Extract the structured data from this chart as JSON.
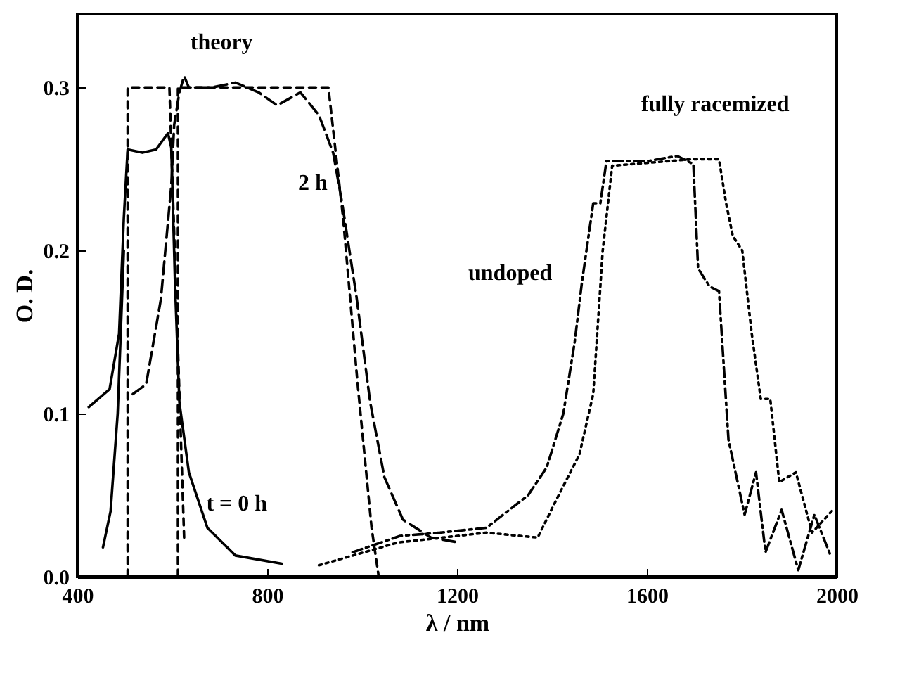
{
  "chart_data": {
    "type": "line",
    "xlabel": "λ / nm",
    "ylabel": "O. D.",
    "xlim": [
      400,
      2000
    ],
    "xticks": [
      400,
      800,
      1200,
      1600,
      2000
    ],
    "ylim": [
      0,
      0.345
    ],
    "yticks": [
      {
        "value": 0,
        "label": "0.0"
      },
      0.1,
      0.2,
      0.3
    ],
    "grid": false,
    "marker": "none",
    "series": [
      {
        "color": "#000000",
        "line_style": "solid",
        "x": [
          424,
          468,
          488,
          498,
          506,
          537,
          566,
          591,
          598,
          606,
          615,
          635,
          674,
          733,
          831
        ],
        "values": [
          0.104,
          0.115,
          0.149,
          0.22,
          0.262,
          0.26,
          0.262,
          0.272,
          0.263,
          0.178,
          0.107,
          0.064,
          0.03,
          0.013,
          0.008
        ]
      },
      {
        "color": "#000000",
        "line_style": "solid",
        "x": [
          454,
          470,
          485,
          498
        ],
        "values": [
          0.018,
          0.04,
          0.1,
          0.2
        ]
      },
      {
        "color": "#000000",
        "line_style": "dashed",
        "x": [
          506,
          506,
          594,
          625
        ],
        "values": [
          0.0,
          0.3,
          0.3,
          0.024
        ]
      },
      {
        "color": "#000000",
        "line_style": "dashed",
        "x": [
          612,
          612,
          929,
          960,
          990,
          1020,
          1035
        ],
        "values": [
          0.0,
          0.3,
          0.3,
          0.22,
          0.12,
          0.03,
          0.0
        ]
      },
      {
        "color": "#000000",
        "line_style": "longdash",
        "x": [
          517,
          545,
          576,
          598,
          604,
          615,
          625,
          635,
          684,
          733,
          782,
          821,
          870,
          909,
          939,
          958,
          988,
          1017,
          1047,
          1086,
          1145,
          1203
        ],
        "values": [
          0.112,
          0.118,
          0.17,
          0.24,
          0.277,
          0.297,
          0.307,
          0.3,
          0.3,
          0.303,
          0.297,
          0.289,
          0.297,
          0.283,
          0.26,
          0.229,
          0.172,
          0.107,
          0.061,
          0.035,
          0.024,
          0.021
        ]
      },
      {
        "color": "#000000",
        "line_style": "dashdot",
        "x": [
          980,
          1080,
          1164,
          1262,
          1350,
          1389,
          1424,
          1448,
          1463,
          1487,
          1502,
          1515,
          1605,
          1664,
          1698,
          1708,
          1732,
          1752,
          1772,
          1806,
          1830,
          1850,
          1884,
          1919,
          1953,
          1987
        ],
        "values": [
          0.015,
          0.025,
          0.027,
          0.03,
          0.05,
          0.067,
          0.1,
          0.144,
          0.18,
          0.229,
          0.229,
          0.255,
          0.255,
          0.258,
          0.253,
          0.189,
          0.178,
          0.175,
          0.084,
          0.038,
          0.064,
          0.015,
          0.041,
          0.004,
          0.038,
          0.013
        ]
      },
      {
        "color": "#000000",
        "line_style": "dotted",
        "x": [
          909,
          1076,
          1262,
          1370,
          1409,
          1458,
          1487,
          1507,
          1527,
          1654,
          1693,
          1752,
          1767,
          1781,
          1801,
          1821,
          1840,
          1860,
          1879,
          1914,
          1948,
          1992
        ],
        "values": [
          0.007,
          0.021,
          0.027,
          0.024,
          0.047,
          0.075,
          0.112,
          0.2,
          0.252,
          0.255,
          0.256,
          0.256,
          0.229,
          0.209,
          0.2,
          0.149,
          0.109,
          0.109,
          0.058,
          0.064,
          0.027,
          0.041
        ]
      }
    ],
    "annotations": [
      "theory",
      "2 h",
      "t = 0 h",
      "undoped",
      "fully racemized"
    ]
  }
}
